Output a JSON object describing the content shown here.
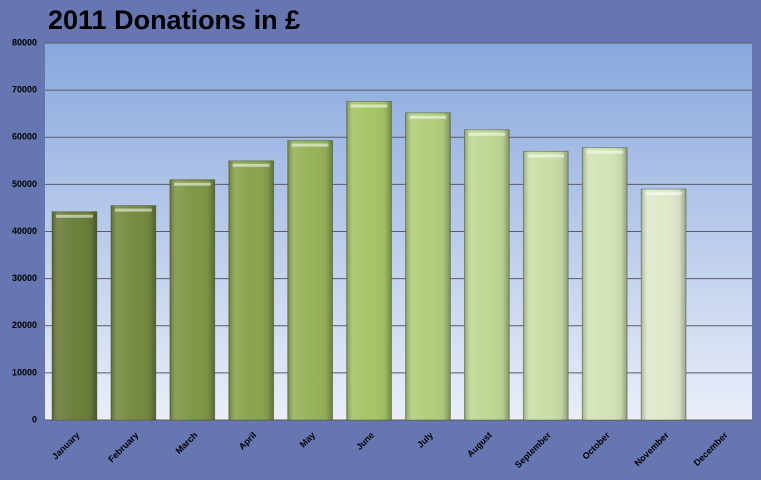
{
  "chart_data": {
    "type": "bar",
    "title": "2011 Donations in £",
    "categories": [
      "January",
      "February",
      "March",
      "April",
      "May",
      "June",
      "July",
      "August",
      "September",
      "October",
      "November",
      "December"
    ],
    "values": [
      44200,
      45500,
      51000,
      55000,
      59300,
      67600,
      65200,
      61600,
      57000,
      57800,
      49000,
      null
    ],
    "colors": [
      "#6b7e3a",
      "#768b40",
      "#809747",
      "#8ba34e",
      "#98b359",
      "#a6c566",
      "#b1cf7c",
      "#bfd893",
      "#cadea8",
      "#d3e3b5",
      "#dfeacb",
      null
    ],
    "ylim": [
      0,
      80000
    ],
    "yticks": [
      0,
      10000,
      20000,
      30000,
      40000,
      50000,
      60000,
      70000,
      80000
    ],
    "grid": true
  }
}
